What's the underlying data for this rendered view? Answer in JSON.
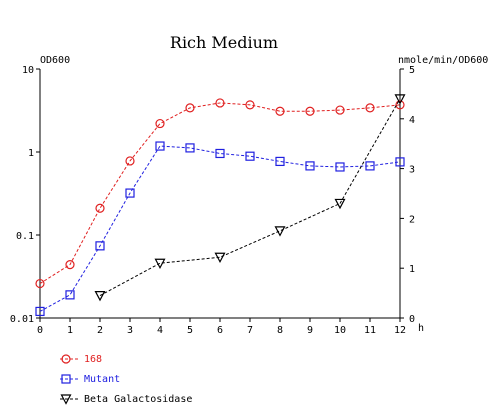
{
  "chart_data": {
    "type": "line",
    "title": "Rich Medium",
    "left_axis_label": "OD600",
    "right_axis_label": "nmole/min/OD600",
    "x_unit_label": "h",
    "x": [
      0,
      1,
      2,
      3,
      4,
      5,
      6,
      7,
      8,
      9,
      10,
      11,
      12
    ],
    "x_ticks": [
      "0",
      "1",
      "2",
      "3",
      "4",
      "5",
      "6",
      "7",
      "8",
      "9",
      "10",
      "11",
      "12"
    ],
    "xlim": [
      0,
      12
    ],
    "left_scale": "log",
    "left_ylim": [
      0.01,
      10
    ],
    "left_ticks": [
      "0.01",
      "0.1",
      "1",
      "10"
    ],
    "right_ylim": [
      0,
      5
    ],
    "right_ticks": [
      "0",
      "1",
      "2",
      "3",
      "4",
      "5"
    ],
    "grid": false,
    "legend_position": "bottom-left",
    "series": [
      {
        "name": "168",
        "axis": "left",
        "marker": "circle",
        "color": "#e02020",
        "x": [
          0,
          1,
          2,
          3,
          4,
          5,
          6,
          7,
          8,
          9,
          10,
          11,
          12
        ],
        "values": [
          0.026,
          0.044,
          0.21,
          0.78,
          2.2,
          3.4,
          3.9,
          3.7,
          3.1,
          3.1,
          3.2,
          3.4,
          3.7
        ]
      },
      {
        "name": "Mutant",
        "axis": "left",
        "marker": "square",
        "color": "#2020e0",
        "x": [
          0,
          1,
          2,
          3,
          4,
          5,
          6,
          7,
          8,
          9,
          10,
          11,
          12
        ],
        "values": [
          0.012,
          0.019,
          0.074,
          0.32,
          1.18,
          1.12,
          0.96,
          0.89,
          0.77,
          0.68,
          0.66,
          0.68,
          0.76
        ]
      },
      {
        "name": "Beta Galactosidase",
        "axis": "right",
        "marker": "triangle-down",
        "color": "#000000",
        "x": [
          2,
          4,
          6,
          8,
          10,
          12
        ],
        "values": [
          0.45,
          1.1,
          1.22,
          1.75,
          2.3,
          4.4
        ]
      }
    ]
  }
}
